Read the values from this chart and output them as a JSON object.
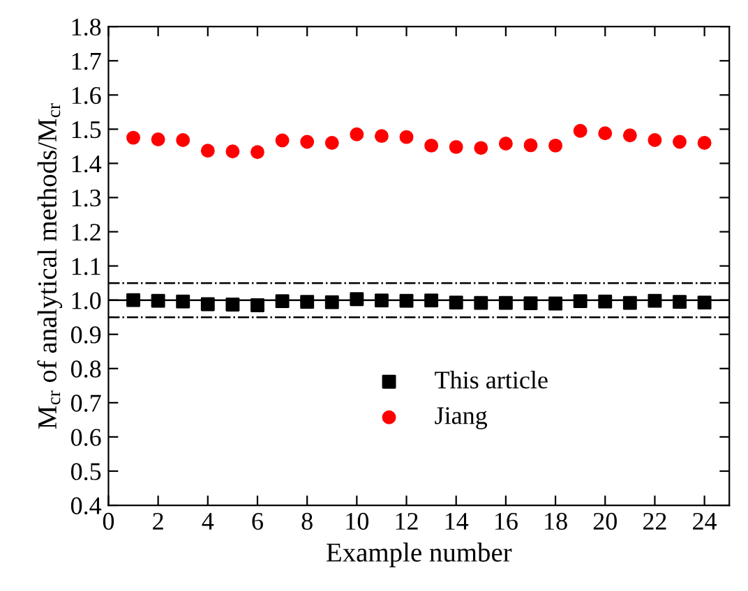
{
  "chart_data": {
    "type": "scatter",
    "xlabel": "Example number",
    "ylabel": "M$_{cr}$ of analytical methods/M$_{cr}$",
    "x": [
      1,
      2,
      3,
      4,
      5,
      6,
      7,
      8,
      9,
      10,
      11,
      12,
      13,
      14,
      15,
      16,
      17,
      18,
      19,
      20,
      21,
      22,
      23,
      24
    ],
    "series": [
      {
        "name": "This article",
        "color": "#000000",
        "marker": "square",
        "values": [
          1.0,
          0.998,
          0.996,
          0.988,
          0.987,
          0.985,
          0.997,
          0.995,
          0.994,
          1.003,
          0.999,
          0.998,
          0.999,
          0.993,
          0.992,
          0.992,
          0.991,
          0.99,
          0.997,
          0.996,
          0.992,
          0.998,
          0.995,
          0.993
        ]
      },
      {
        "name": "Jiang",
        "color": "#ff0000",
        "marker": "circle",
        "values": [
          1.475,
          1.47,
          1.468,
          1.437,
          1.435,
          1.433,
          1.467,
          1.463,
          1.46,
          1.485,
          1.48,
          1.477,
          1.452,
          1.448,
          1.445,
          1.458,
          1.453,
          1.452,
          1.495,
          1.488,
          1.482,
          1.468,
          1.463,
          1.46
        ]
      }
    ],
    "ref_lines": [
      {
        "axis": "y",
        "value": 1.05,
        "line_style": "dashdot",
        "color": "#000000"
      },
      {
        "axis": "y",
        "value": 1.0,
        "line_style": "solid",
        "color": "#000000"
      },
      {
        "axis": "y",
        "value": 0.95,
        "line_style": "dashdot",
        "color": "#000000"
      }
    ],
    "xlim": [
      0,
      25
    ],
    "xticks": [
      0,
      2,
      4,
      6,
      8,
      10,
      12,
      14,
      16,
      18,
      20,
      22,
      24
    ],
    "ylim": [
      0.4,
      1.8
    ],
    "yticks": [
      0.4,
      0.5,
      0.6,
      0.7,
      0.8,
      0.9,
      {
        "value": 1,
        "label": "1.0"
      },
      1.1,
      1.2,
      1.3,
      1.4,
      1.5,
      1.6,
      1.7,
      1.8
    ],
    "grid": false,
    "legend": "center"
  }
}
